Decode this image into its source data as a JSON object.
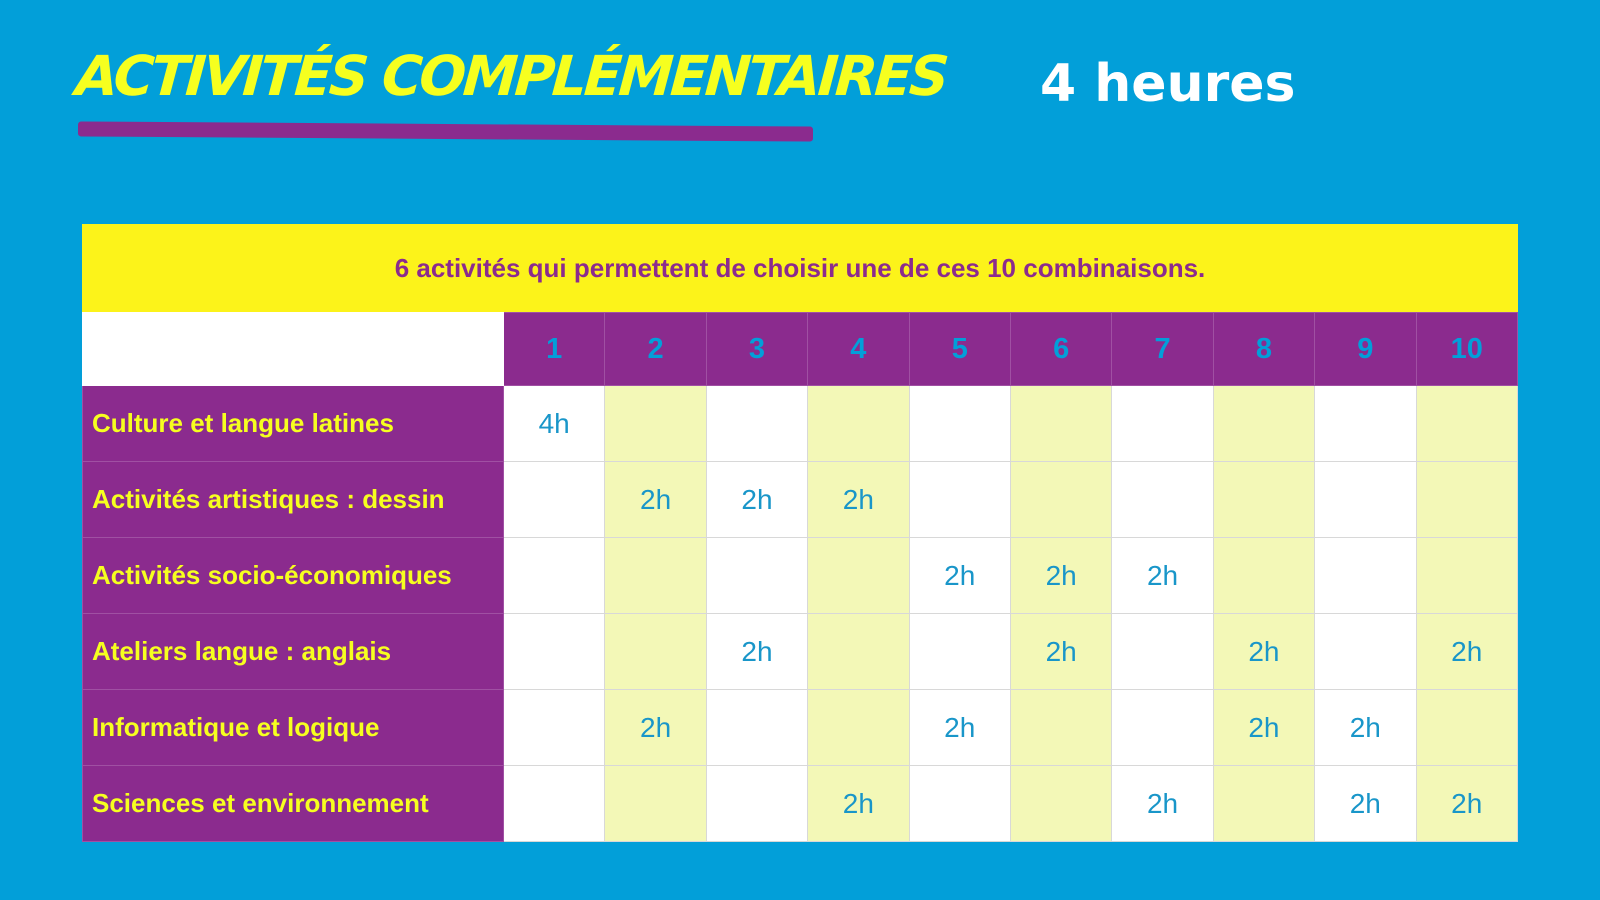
{
  "header": {
    "title": "ACTIVITÉS COMPLÉMENTAIRES",
    "hours": "4 heures"
  },
  "table": {
    "banner": "6 activités qui permettent de choisir une de ces 10 combinaisons.",
    "columns": [
      "1",
      "2",
      "3",
      "4",
      "5",
      "6",
      "7",
      "8",
      "9",
      "10"
    ],
    "rows": [
      {
        "label": "Culture et langue latines",
        "cells": [
          "4h",
          "",
          "",
          "",
          "",
          "",
          "",
          "",
          "",
          ""
        ]
      },
      {
        "label": "Activités artistiques : dessin",
        "cells": [
          "",
          "2h",
          "2h",
          "2h",
          "",
          "",
          "",
          "",
          "",
          ""
        ]
      },
      {
        "label": "Activités socio-économiques",
        "cells": [
          "",
          "",
          "",
          "",
          "2h",
          "2h",
          "2h",
          "",
          "",
          ""
        ]
      },
      {
        "label": "Ateliers langue : anglais",
        "cells": [
          "",
          "",
          "2h",
          "",
          "",
          "2h",
          "",
          "2h",
          "",
          "2h"
        ]
      },
      {
        "label": "Informatique et logique",
        "cells": [
          "",
          "2h",
          "",
          "",
          "2h",
          "",
          "",
          "2h",
          "2h",
          ""
        ]
      },
      {
        "label": "Sciences et environnement",
        "cells": [
          "",
          "",
          "",
          "2h",
          "",
          "",
          "2h",
          "",
          "2h",
          "2h"
        ]
      }
    ]
  },
  "colors": {
    "background": "#029fd9",
    "purple": "#8b2b8e",
    "yellow": "#fcf31a",
    "title_yellow": "#f6ff1f",
    "cell_text": "#1996c9",
    "even_column": "#f3f8b7"
  }
}
